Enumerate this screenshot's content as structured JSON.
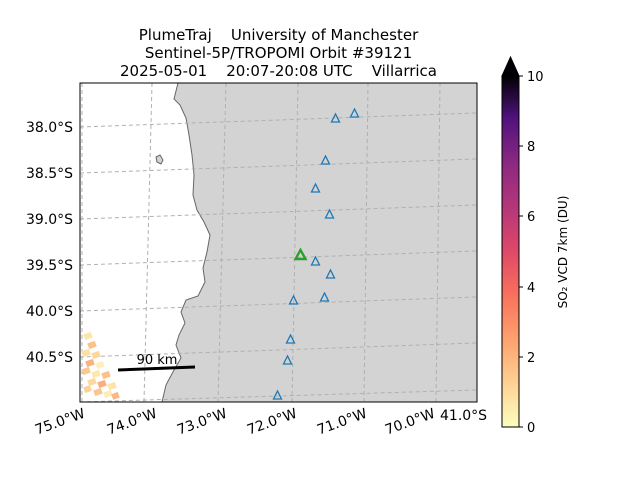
{
  "title": {
    "line1": "PlumeTraj    University of Manchester",
    "line2": "Sentinel-5P/TROPOMI Orbit #39121",
    "line3": "2025-05-01    20:07-20:08 UTC    Villarrica"
  },
  "map": {
    "lat_labels": [
      "38.0°S",
      "38.5°S",
      "39.0°S",
      "39.5°S",
      "40.0°S",
      "40.5°S"
    ],
    "lon_labels": [
      "75.0°W",
      "74.0°W",
      "73.0°W",
      "72.0°W",
      "71.0°W",
      "70.0°W"
    ],
    "corner_lat_label": "41.0°S",
    "scale_bar_label": "90 km",
    "land_color": "#d3d3d3",
    "sea_color": "#ffffff",
    "coast_color": "#666666",
    "volcano_marker_color": "#2ca02c",
    "other_volcano_color": "#1f77b4",
    "volcano_name": "Villarrica"
  },
  "colorbar": {
    "label": "SO₂ VCD 7km (DU)",
    "ticks": [
      "0",
      "2",
      "4",
      "6",
      "8",
      "10"
    ],
    "min": 0,
    "max": 10,
    "extend": "max",
    "colormap": "magma_r"
  }
}
